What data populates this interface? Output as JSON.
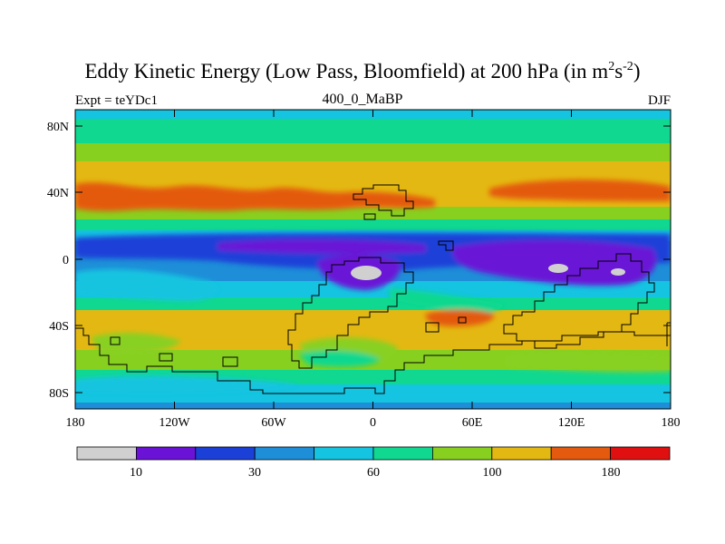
{
  "title": {
    "main": "Eddy Kinetic Energy (Low Pass, Bloomfield) at 200 hPa (in m",
    "sup1": "2",
    "mid": "s",
    "sup2": "-2",
    "close": ")"
  },
  "subtitle_left": "Expt = teYDc1",
  "subtitle_center": "400_0_MaBP",
  "subtitle_right": "DJF",
  "lat_ticks": [
    "80N",
    "40N",
    "0",
    "40S",
    "80S"
  ],
  "lon_ticks": [
    "180",
    "120W",
    "60W",
    "0",
    "60E",
    "120E",
    "180"
  ],
  "colorbar": {
    "colors": [
      "#d0d0d0",
      "#6a12d6",
      "#1a40d8",
      "#1e8ed8",
      "#14c4e0",
      "#10d890",
      "#88d020",
      "#e4b812",
      "#e45a0e",
      "#e01010"
    ],
    "labels": [
      "10",
      "30",
      "60",
      "100",
      "180"
    ]
  }
}
